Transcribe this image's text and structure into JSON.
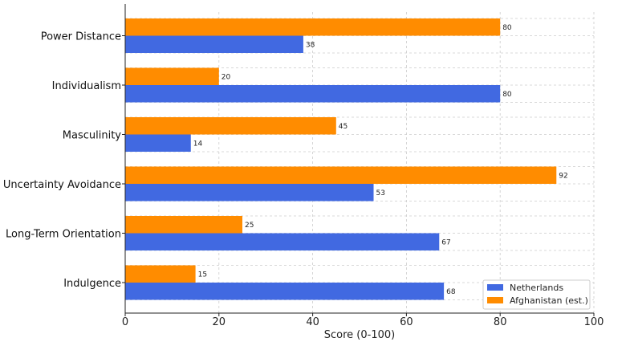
{
  "chart_data": {
    "type": "bar",
    "orientation": "horizontal",
    "title": "",
    "categories": [
      "Power Distance",
      "Individualism",
      "Masculinity",
      "Uncertainty Avoidance",
      "Long-Term Orientation",
      "Indulgence"
    ],
    "series": [
      {
        "name": "Netherlands",
        "color": "#4169e1",
        "values": [
          38,
          80,
          14,
          53,
          67,
          68
        ]
      },
      {
        "name": "Afghanistan (est.)",
        "color": "#ff8c00",
        "values": [
          80,
          20,
          45,
          92,
          25,
          15
        ]
      }
    ],
    "xlabel": "Score (0-100)",
    "ylabel": "",
    "xlim": [
      0,
      100
    ],
    "xticks": [
      "0",
      "20",
      "40",
      "60",
      "80",
      "100"
    ],
    "grid": true,
    "legend": "bottom-right"
  }
}
